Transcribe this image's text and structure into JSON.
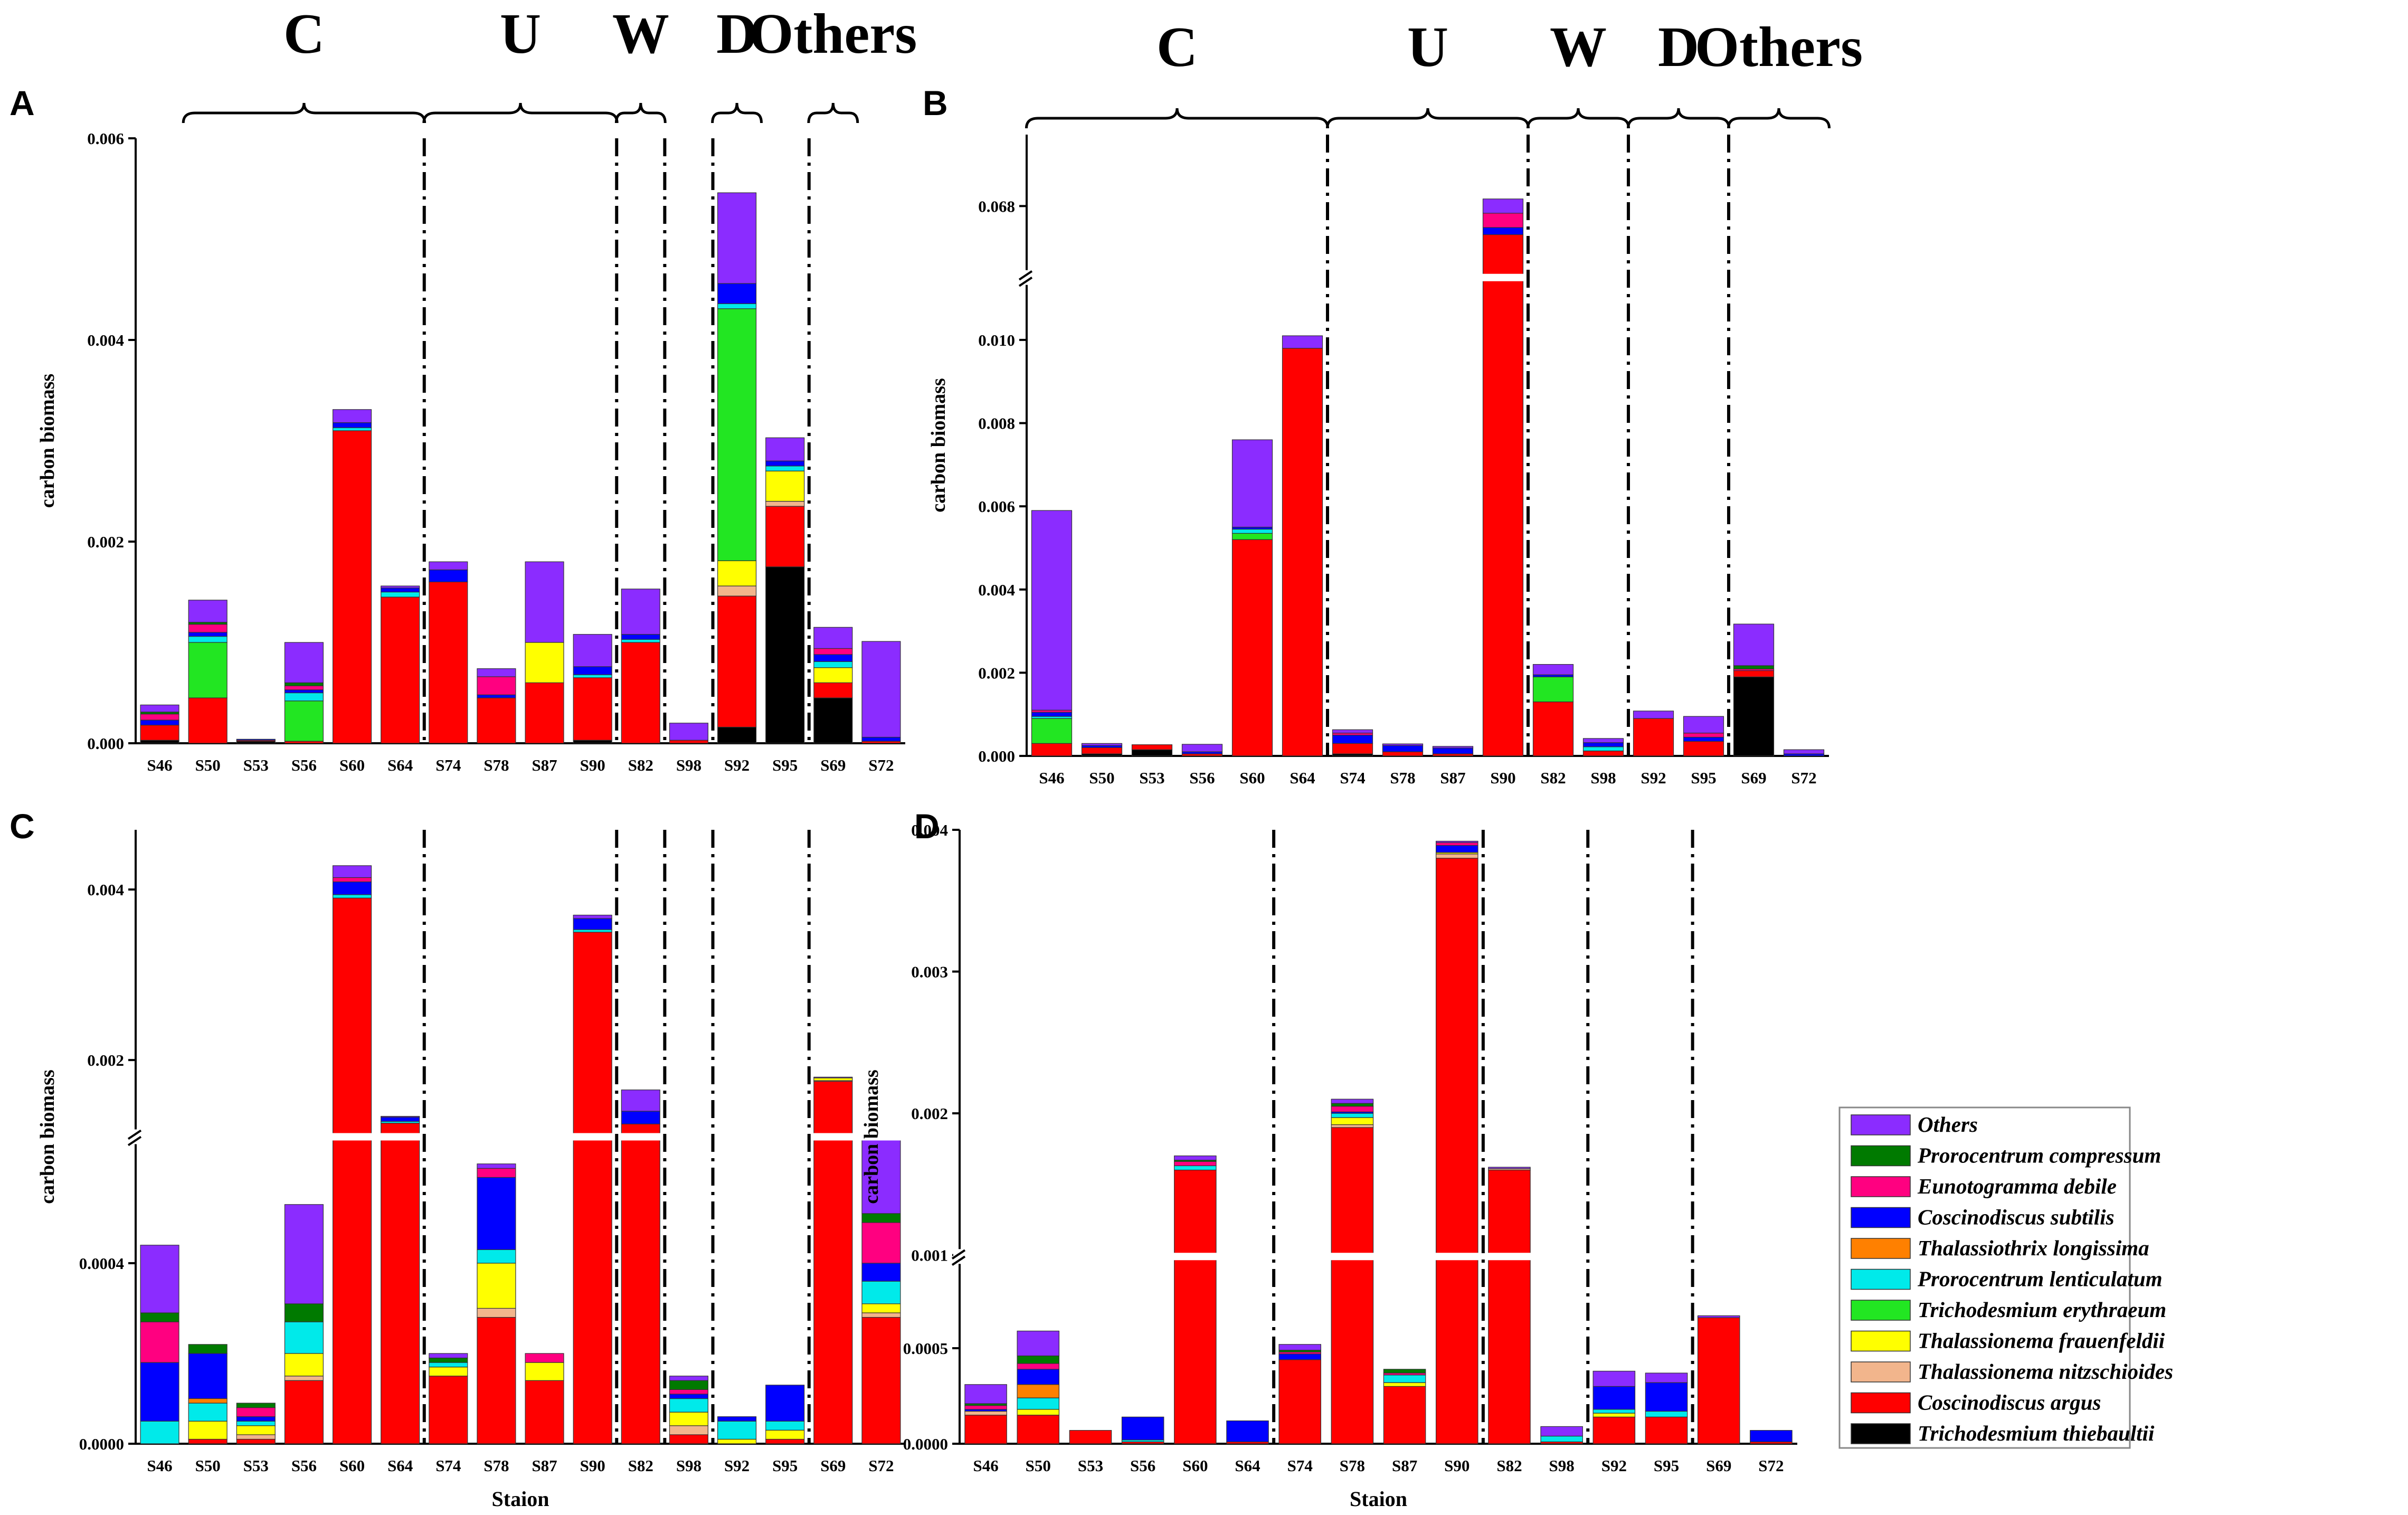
{
  "figure": {
    "ylabel": "carbon biomass",
    "xlabel": "Staion"
  },
  "species": [
    {
      "name": "Trichodesmium thiebaultii",
      "color": "#000000"
    },
    {
      "name": "Coscinodiscus argus",
      "color": "#ff0000"
    },
    {
      "name": "Thalassionema nitzschioides",
      "color": "#f2b58c"
    },
    {
      "name": "Thalassionema frauenfeldii",
      "color": "#ffff00"
    },
    {
      "name": "Trichodesmium erythraeum",
      "color": "#22e622"
    },
    {
      "name": "Prorocentrum lenticulatum",
      "color": "#00eaea"
    },
    {
      "name": "Thalassiothrix longissima",
      "color": "#ff8000"
    },
    {
      "name": "Coscinodiscus subtilis",
      "color": "#0000ff"
    },
    {
      "name": "Eunotogramma debile",
      "color": "#ff0080"
    },
    {
      "name": "Prorocentrum compressum",
      "color": "#007a00"
    },
    {
      "name": "Others",
      "color": "#8b2cff"
    }
  ],
  "legend_order": [
    "Others",
    "Prorocentrum compressum",
    "Eunotogramma debile",
    "Coscinodiscus subtilis",
    "Thalassiothrix longissima",
    "Prorocentrum lenticulatum",
    "Trichodesmium erythraeum",
    "Thalassionema frauenfeldii",
    "Thalassionema nitzschioides",
    "Coscinodiscus argus",
    "Trichodesmium thiebaultii"
  ],
  "chart_data": [
    {
      "type": "bar",
      "stacked": true,
      "panel": "A",
      "ylabel": "carbon biomass",
      "categories": [
        "S46",
        "S50",
        "S53",
        "S56",
        "S60",
        "S64",
        "S74",
        "S78",
        "S87",
        "S90",
        "S82",
        "S98",
        "S92",
        "S95",
        "S69",
        "S72"
      ],
      "yticks": [
        "0.000",
        "0.002",
        "0.004",
        "0.006"
      ],
      "ylim": [
        0,
        0.006
      ],
      "groups": [
        {
          "label": "C",
          "stations": [
            "S50",
            "S53",
            "S56",
            "S60",
            "S64"
          ]
        },
        {
          "label": "U",
          "stations": [
            "S74",
            "S78",
            "S87",
            "S90"
          ]
        },
        {
          "label": "W",
          "stations": [
            "S82"
          ]
        },
        {
          "label": "D",
          "stations": [
            "S92"
          ]
        },
        {
          "label": "Others",
          "stations": [
            "S69"
          ]
        }
      ],
      "separators_after": [
        "S64",
        "S90",
        "S82",
        "S98",
        "S95"
      ],
      "series_order": [
        "Trichodesmium thiebaultii",
        "Coscinodiscus argus",
        "Thalassionema nitzschioides",
        "Thalassionema frauenfeldii",
        "Trichodesmium erythraeum",
        "Prorocentrum lenticulatum",
        "Thalassiothrix longissima",
        "Coscinodiscus subtilis",
        "Eunotogramma debile",
        "Prorocentrum compressum",
        "Others"
      ],
      "values": [
        [
          3e-05,
          0.00015,
          0,
          0,
          0,
          0,
          0,
          5e-05,
          6e-05,
          2e-05,
          7e-05
        ],
        [
          0,
          0.00045,
          0,
          0,
          0.00055,
          6e-05,
          0,
          4e-05,
          8e-05,
          2e-05,
          0.00022
        ],
        [
          2e-05,
          1e-05,
          0,
          0,
          0,
          0,
          0,
          1e-05,
          0,
          0,
          0
        ],
        [
          0,
          2e-05,
          0,
          0,
          0.0004,
          8e-05,
          0,
          3e-05,
          4e-05,
          3e-05,
          0.0004
        ],
        [
          0,
          0.0031,
          0,
          0,
          0,
          3e-05,
          0,
          5e-05,
          0,
          0,
          0.00013
        ],
        [
          0,
          0.00145,
          0,
          0,
          0,
          5e-05,
          0,
          4e-05,
          0,
          0,
          2e-05
        ],
        [
          0,
          0.0016,
          0,
          0,
          0,
          0,
          0,
          0.00012,
          0,
          0,
          8e-05
        ],
        [
          0,
          0.00045,
          0,
          0,
          0,
          0,
          0,
          3e-05,
          0.00018,
          0,
          8e-05
        ],
        [
          0,
          0.0006,
          0,
          0.0004,
          0,
          0,
          0,
          0,
          0,
          0,
          0.0008
        ],
        [
          3e-05,
          0.00062,
          0,
          0,
          0,
          3e-05,
          0,
          8e-05,
          0,
          0,
          0.00032
        ],
        [
          0,
          0.001,
          0,
          0,
          0,
          3e-05,
          0,
          5e-05,
          0,
          0,
          0.00045
        ],
        [
          0,
          3e-05,
          0,
          0,
          0,
          0,
          0,
          0,
          0,
          0,
          0.00017
        ],
        [
          0.00016,
          0.0013,
          0.0001,
          0.00025,
          0.0025,
          5e-05,
          0,
          0.0002,
          0,
          0,
          0.0009
        ],
        [
          0.00175,
          0.0006,
          5e-05,
          0.0003,
          0,
          5e-05,
          0,
          5e-05,
          0,
          0,
          0.00023
        ],
        [
          0.00045,
          0.00015,
          0,
          0.00015,
          0,
          6e-05,
          0,
          7e-05,
          6e-05,
          0,
          0.00021
        ],
        [
          0,
          2e-05,
          0,
          0,
          0,
          0,
          0,
          4e-05,
          0,
          0,
          0.00095
        ]
      ]
    },
    {
      "type": "bar",
      "stacked": true,
      "panel": "B",
      "ylabel": "carbon biomass",
      "categories": [
        "S46",
        "S50",
        "S53",
        "S56",
        "S60",
        "S64",
        "S74",
        "S78",
        "S87",
        "S90",
        "S82",
        "S98",
        "S92",
        "S95",
        "S69",
        "S72"
      ],
      "yticks": [
        "0.000",
        "0.002",
        "0.004",
        "0.006",
        "0.008",
        "0.010",
        "0.068"
      ],
      "ylim": [
        0,
        0.0685
      ],
      "axis_break": {
        "from": 0.0115,
        "to": 0.0675
      },
      "groups": [
        {
          "label": "C",
          "stations": [
            "S46",
            "S50",
            "S53",
            "S56",
            "S60",
            "S64"
          ]
        },
        {
          "label": "U",
          "stations": [
            "S74",
            "S78",
            "S87",
            "S90"
          ]
        },
        {
          "label": "W",
          "stations": [
            "S82",
            "S98"
          ]
        },
        {
          "label": "D",
          "stations": [
            "S92",
            "S95"
          ]
        },
        {
          "label": "Others",
          "stations": [
            "S69",
            "S72"
          ]
        }
      ],
      "separators_after": [
        "S64",
        "S90",
        "S98",
        "S95"
      ],
      "series_order": [
        "Trichodesmium thiebaultii",
        "Coscinodiscus argus",
        "Thalassionema nitzschioides",
        "Thalassionema frauenfeldii",
        "Trichodesmium erythraeum",
        "Prorocentrum lenticulatum",
        "Thalassiothrix longissima",
        "Coscinodiscus subtilis",
        "Eunotogramma debile",
        "Prorocentrum compressum",
        "Others"
      ],
      "values": [
        [
          0,
          0.0003,
          0,
          0,
          0.0006,
          5e-05,
          0,
          0.0001,
          5e-05,
          0,
          0.0048
        ],
        [
          5e-05,
          0.00015,
          0,
          0,
          0,
          0,
          0,
          5e-05,
          0,
          0,
          5e-05
        ],
        [
          0.00015,
          0.00012,
          0,
          0,
          0,
          0,
          0,
          0,
          0,
          0,
          0
        ],
        [
          0,
          5e-05,
          0,
          0,
          0,
          0,
          0,
          5e-05,
          0,
          0,
          0.00018
        ],
        [
          0,
          0.0052,
          0,
          0,
          0.00015,
          0.0001,
          0,
          5e-05,
          0,
          0,
          0.0021
        ],
        [
          0,
          0.0098,
          0,
          0,
          0,
          0,
          0,
          0,
          0,
          0,
          0.0003
        ],
        [
          5e-05,
          0.00025,
          0,
          0,
          0,
          0,
          0,
          0.0002,
          5e-05,
          0,
          8e-05
        ],
        [
          0,
          0.0001,
          0,
          0,
          0,
          0,
          0,
          0.00015,
          0,
          0,
          4e-05
        ],
        [
          0,
          5e-05,
          0,
          0,
          0,
          0,
          0,
          0.00014,
          0,
          0,
          4e-05
        ],
        [
          0,
          0.0678,
          0,
          0,
          0,
          0,
          0,
          5e-05,
          0.0001,
          0,
          0.0001
        ],
        [
          0,
          0.0013,
          0,
          0,
          0.0006,
          0,
          0,
          5e-05,
          0,
          0,
          0.00025
        ],
        [
          0,
          0.00012,
          0,
          0,
          0,
          0.0001,
          0,
          0.0001,
          0,
          0,
          0.0001
        ],
        [
          0,
          0.0009,
          0,
          0,
          0,
          0,
          0,
          0,
          0,
          0,
          0.00018
        ],
        [
          0,
          0.00035,
          0,
          0,
          0,
          0,
          0,
          0.0001,
          0.0001,
          0,
          0.0004
        ],
        [
          0.0019,
          0.00015,
          0,
          0,
          0,
          0,
          0,
          0,
          4e-05,
          8e-05,
          0.001
        ],
        [
          0,
          0,
          0,
          0,
          0,
          0,
          0,
          5e-05,
          0,
          0,
          0.0001
        ]
      ]
    },
    {
      "type": "bar",
      "stacked": true,
      "panel": "C",
      "ylabel": "carbon biomass",
      "xlabel": "Staion",
      "categories": [
        "S46",
        "S50",
        "S53",
        "S56",
        "S60",
        "S64",
        "S74",
        "S78",
        "S87",
        "S90",
        "S82",
        "S98",
        "S92",
        "S95",
        "S69",
        "S72"
      ],
      "yticks": [
        "0.0000",
        "0.0004",
        "0.002",
        "0.004"
      ],
      "ylim": [
        0,
        0.0047
      ],
      "axis_break": {
        "from": 0.00068,
        "to": 0.0011
      },
      "groups": [],
      "separators_after": [
        "S64",
        "S90",
        "S82",
        "S98",
        "S95"
      ],
      "series_order": [
        "Trichodesmium thiebaultii",
        "Coscinodiscus argus",
        "Thalassionema nitzschioides",
        "Thalassionema frauenfeldii",
        "Trichodesmium erythraeum",
        "Prorocentrum lenticulatum",
        "Thalassiothrix longissima",
        "Coscinodiscus subtilis",
        "Eunotogramma debile",
        "Prorocentrum compressum",
        "Others"
      ],
      "values": [
        [
          0,
          0,
          0,
          0,
          0,
          5e-05,
          0,
          0.00013,
          9e-05,
          2e-05,
          0.00015
        ],
        [
          0,
          1e-05,
          0,
          4e-05,
          0,
          4e-05,
          1e-05,
          0.0001,
          0,
          2e-05,
          0
        ],
        [
          0,
          1e-05,
          1e-05,
          2e-05,
          0,
          1e-05,
          0,
          1e-05,
          2e-05,
          1e-05,
          0
        ],
        [
          0,
          0.00014,
          1e-05,
          5e-05,
          0,
          7e-05,
          0,
          0,
          0,
          4e-05,
          0.00022
        ],
        [
          0,
          0.0039,
          0,
          0,
          0,
          4e-05,
          0,
          0.00015,
          5e-05,
          0,
          0.00014
        ],
        [
          0,
          0.00126,
          0,
          0,
          0,
          2e-05,
          0,
          5e-05,
          0,
          0,
          1e-05
        ],
        [
          0,
          0.00015,
          0,
          2e-05,
          0,
          1e-05,
          0,
          0,
          0,
          1e-05,
          1e-05
        ],
        [
          0,
          0.00028,
          2e-05,
          0.0001,
          0,
          3e-05,
          0,
          0.00016,
          2e-05,
          0,
          1e-05
        ],
        [
          0,
          0.00014,
          0,
          4e-05,
          0,
          0,
          0,
          0,
          2e-05,
          0,
          0
        ],
        [
          0,
          0.0035,
          0,
          0,
          0,
          3e-05,
          0,
          0.00013,
          0,
          0,
          4e-05
        ],
        [
          0,
          0.00125,
          0,
          0,
          0,
          0,
          0,
          0.00015,
          0,
          0,
          0.00025
        ],
        [
          0,
          2e-05,
          2e-05,
          3e-05,
          0,
          3e-05,
          0,
          1e-05,
          1e-05,
          2e-05,
          1e-05
        ],
        [
          0,
          0,
          0,
          1e-05,
          0,
          4e-05,
          0,
          1e-05,
          0,
          0,
          0
        ],
        [
          0,
          1e-05,
          0,
          2e-05,
          0,
          2e-05,
          0,
          8e-05,
          0,
          0,
          0
        ],
        [
          0,
          0.00175,
          1e-05,
          3e-05,
          0,
          0,
          0,
          0,
          0,
          0,
          1e-05
        ],
        [
          0,
          0.00028,
          1e-05,
          2e-05,
          0,
          5e-05,
          0,
          4e-05,
          9e-05,
          2e-05,
          0.00051
        ]
      ]
    },
    {
      "type": "bar",
      "stacked": true,
      "panel": "D",
      "ylabel": "carbon biomass",
      "xlabel": "Staion",
      "categories": [
        "S46",
        "S50",
        "S53",
        "S56",
        "S60",
        "S64",
        "S74",
        "S78",
        "S87",
        "S90",
        "S82",
        "S98",
        "S92",
        "S95",
        "S69",
        "S72"
      ],
      "yticks": [
        "0.0000",
        "0.0005",
        "0.001",
        "0.002",
        "0.003",
        "0.004"
      ],
      "ylim": [
        0,
        0.004
      ],
      "axis_break": {
        "from": 0.00098,
        "to": 0.00099
      },
      "groups": [],
      "separators_after": [
        "S64",
        "S90",
        "S98",
        "S95"
      ],
      "series_order": [
        "Trichodesmium thiebaultii",
        "Coscinodiscus argus",
        "Thalassionema nitzschioides",
        "Thalassionema frauenfeldii",
        "Trichodesmium erythraeum",
        "Prorocentrum lenticulatum",
        "Thalassiothrix longissima",
        "Coscinodiscus subtilis",
        "Eunotogramma debile",
        "Prorocentrum compressum",
        "Others"
      ],
      "values": [
        [
          0,
          0.00015,
          2e-05,
          0,
          0,
          0,
          0,
          1e-05,
          2e-05,
          1e-05,
          0.0001
        ],
        [
          0,
          0.00015,
          0,
          3e-05,
          0,
          6e-05,
          7e-05,
          8e-05,
          3e-05,
          4e-05,
          0.00013
        ],
        [
          0,
          7e-05,
          0,
          0,
          0,
          0,
          0,
          0,
          0,
          0,
          0
        ],
        [
          0,
          1e-05,
          0,
          0,
          0,
          1e-05,
          0,
          0.00012,
          0,
          0,
          0
        ],
        [
          0,
          0.0016,
          0,
          0,
          0,
          3e-05,
          0,
          0,
          3e-05,
          1e-05,
          3e-05
        ],
        [
          0,
          1e-05,
          0,
          0,
          0,
          0,
          0,
          0.00011,
          0,
          0,
          0
        ],
        [
          0,
          0.00044,
          0,
          0,
          0,
          0,
          0,
          3e-05,
          1e-05,
          1e-05,
          3e-05
        ],
        [
          0,
          0.0019,
          2e-05,
          5e-05,
          0,
          3e-05,
          0,
          1e-05,
          4e-05,
          2e-05,
          3e-05
        ],
        [
          0,
          0.0003,
          0,
          2e-05,
          0,
          4e-05,
          0,
          0,
          1e-05,
          2e-05,
          0
        ],
        [
          0,
          0.0038,
          3e-05,
          1e-05,
          0,
          0,
          0,
          5e-05,
          2e-05,
          0,
          1e-05
        ],
        [
          0,
          0.0016,
          1e-05,
          0,
          0,
          0,
          0,
          0,
          0,
          0,
          1e-05
        ],
        [
          0,
          1e-05,
          0,
          0,
          0,
          3e-05,
          0,
          0,
          0,
          0,
          5e-05
        ],
        [
          0,
          0.00014,
          0,
          2e-05,
          0,
          2e-05,
          0,
          0.00012,
          0,
          0,
          8e-05
        ],
        [
          0,
          0.00014,
          0,
          0,
          0,
          3e-05,
          0,
          0.00015,
          0,
          0,
          5e-05
        ],
        [
          0,
          0.00066,
          0,
          0,
          0,
          0,
          0,
          0,
          0,
          0,
          1e-05
        ],
        [
          0,
          1e-05,
          0,
          0,
          0,
          0,
          0,
          6e-05,
          0,
          0,
          0
        ]
      ]
    }
  ]
}
